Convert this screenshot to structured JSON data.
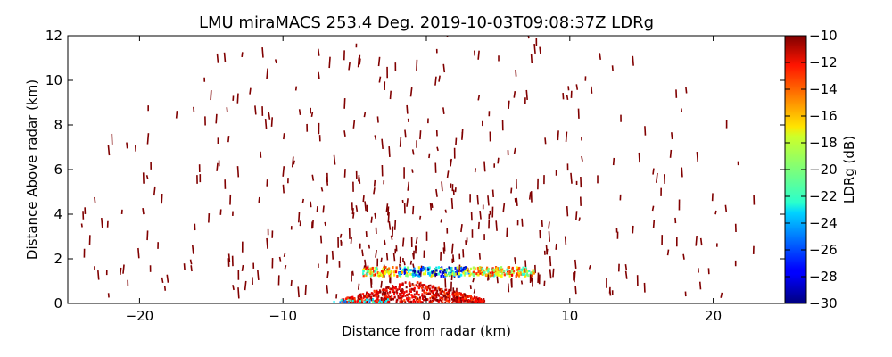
{
  "chart_data": {
    "type": "heatmap",
    "title": "LMU miraMACS 253.4 Deg. 2019-10-03T09:08:37Z  LDRg",
    "xlabel": "Distance from radar (km)",
    "ylabel": "Distance Above radar  (km)",
    "xlim": [
      -25,
      25
    ],
    "ylim": [
      0,
      12
    ],
    "xticks": [
      -20,
      -10,
      0,
      10,
      20
    ],
    "xtick_labels": [
      "−20",
      "−10",
      "0",
      "10",
      "20"
    ],
    "yticks": [
      0,
      2,
      4,
      6,
      8,
      10,
      12
    ],
    "ytick_labels": [
      "0",
      "2",
      "4",
      "6",
      "8",
      "10",
      "12"
    ],
    "grid": false,
    "colorbar": {
      "label": "LDRg (dB)",
      "range": [
        -30,
        -10
      ],
      "ticks": [
        -10,
        -12,
        -14,
        -16,
        -18,
        -20,
        -22,
        -24,
        -26,
        -28,
        -30
      ],
      "tick_labels": [
        "−10",
        "−12",
        "−14",
        "−16",
        "−18",
        "−20",
        "−22",
        "−24",
        "−26",
        "−28",
        "−30"
      ],
      "colormap": "jet"
    },
    "features": [
      {
        "name": "scattered echoes",
        "x_range": [
          -24,
          23
        ],
        "y_range": [
          0,
          12
        ],
        "ldr_db": -10
      },
      {
        "name": "melting-layer band",
        "x_range": [
          -4.5,
          7.5
        ],
        "y_range": [
          1.2,
          1.6
        ],
        "ldr_db_range": [
          -30,
          -16
        ]
      },
      {
        "name": "near-radar clutter",
        "x_range": [
          -6,
          4
        ],
        "y_range": [
          0,
          1.0
        ],
        "ldr_db_range": [
          -14,
          -10
        ]
      }
    ]
  }
}
